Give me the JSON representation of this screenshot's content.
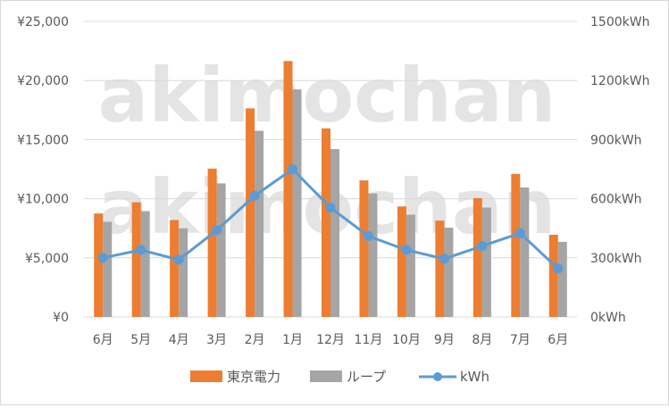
{
  "chart_data": {
    "type": "bar+line",
    "title": "",
    "categories": [
      "6月",
      "5月",
      "4月",
      "3月",
      "2月",
      "1月",
      "12月",
      "11月",
      "10月",
      "9月",
      "8月",
      "7月",
      "6月"
    ],
    "series": [
      {
        "name": "東京電力",
        "type": "bar",
        "axis": "left",
        "color": "#ED7D31",
        "values": [
          8750,
          9700,
          8200,
          12550,
          17650,
          21650,
          15950,
          11550,
          9350,
          8150,
          10050,
          12100,
          6950
        ]
      },
      {
        "name": "ループ",
        "type": "bar",
        "axis": "left",
        "color": "#A5A5A5",
        "values": [
          8050,
          8950,
          7500,
          11300,
          15750,
          19250,
          14200,
          10450,
          8650,
          7550,
          9250,
          10950,
          6350
        ]
      },
      {
        "name": "kWh",
        "type": "line",
        "axis": "right",
        "color": "#5B9BD5",
        "values": [
          300,
          340,
          290,
          440,
          615,
          750,
          555,
          410,
          340,
          295,
          360,
          425,
          245
        ]
      }
    ],
    "y_left": {
      "min": 0,
      "max": 25000,
      "ticks": [
        0,
        5000,
        10000,
        15000,
        20000,
        25000
      ],
      "tick_labels": [
        "¥0",
        "¥5,000",
        "¥10,000",
        "¥15,000",
        "¥20,000",
        "¥25,000"
      ]
    },
    "y_right": {
      "min": 0,
      "max": 1500,
      "ticks": [
        0,
        300,
        600,
        900,
        1200,
        1500
      ],
      "tick_labels": [
        "0kWh",
        "300kWh",
        "600kWh",
        "900kWh",
        "1200kWh",
        "1500kWh"
      ]
    },
    "grid": true,
    "legend": {
      "position": "bottom",
      "items": [
        "東京電力",
        "ループ",
        "kWh"
      ]
    },
    "watermark": "akimochan",
    "colors": {
      "grid": "#D9D9D9",
      "axis_text": "#595959"
    }
  }
}
